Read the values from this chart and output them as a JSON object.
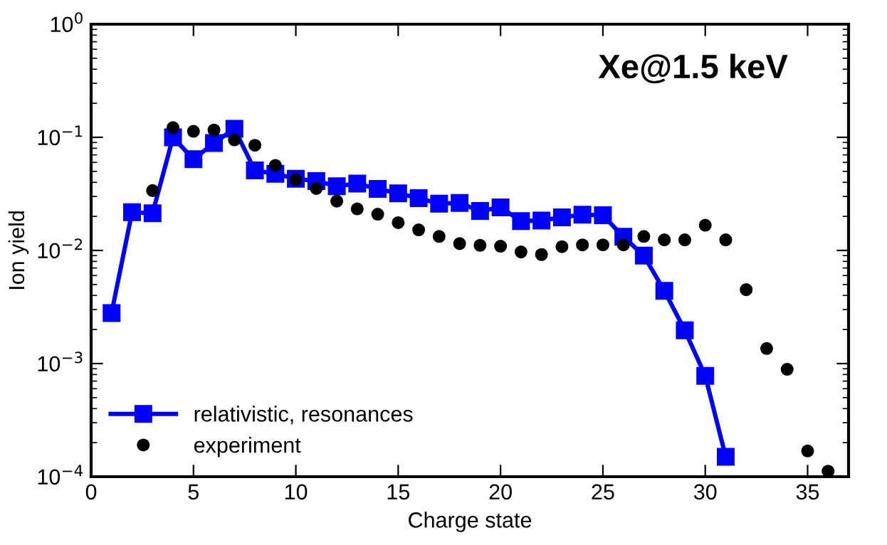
{
  "chart_data": {
    "type": "line",
    "xlabel": "Charge state",
    "ylabel": "Ion yield",
    "annotations": [
      "Xe@1.5 keV"
    ],
    "log": "y",
    "xlim": [
      0,
      37
    ],
    "xticks": [
      0,
      5,
      10,
      15,
      20,
      25,
      30,
      35
    ],
    "ylim": [
      0.0001,
      1
    ],
    "yticks": [
      {
        "value": 0.0001,
        "label": "10$^{−4}$"
      },
      {
        "value": 0.001,
        "label": "10$^{−3}$"
      },
      {
        "value": 0.01,
        "label": "10$^{−2}$"
      },
      {
        "value": 0.1,
        "label": "10$^{−1}$"
      },
      {
        "value": 1,
        "label": "10$^{0}$"
      }
    ],
    "grid": false,
    "legend": "bottom left",
    "series": [
      {
        "name": "relativistic, resonances",
        "color": "#0000ff",
        "marker": "square",
        "line_style": "solid",
        "x": [
          1,
          2,
          3,
          4,
          5,
          6,
          7,
          8,
          9,
          10,
          11,
          12,
          13,
          14,
          15,
          16,
          17,
          18,
          19,
          20,
          21,
          22,
          23,
          24,
          25,
          26,
          27,
          28,
          29,
          30,
          31
        ],
        "values": [
          0.0028,
          0.0218,
          0.0213,
          0.1,
          0.064,
          0.089,
          0.119,
          0.051,
          0.0476,
          0.043,
          0.041,
          0.037,
          0.039,
          0.035,
          0.032,
          0.029,
          0.0259,
          0.0263,
          0.0223,
          0.024,
          0.0182,
          0.0184,
          0.0196,
          0.0207,
          0.0205,
          0.0132,
          0.009,
          0.0044,
          0.00197,
          0.00078,
          0.00015
        ]
      },
      {
        "name": "experiment",
        "type": "scatter",
        "color": "#000000",
        "marker": "circle",
        "x": [
          3,
          4,
          5,
          6,
          7,
          8,
          9,
          10,
          11,
          12,
          13,
          14,
          15,
          16,
          17,
          18,
          19,
          20,
          21,
          22,
          23,
          24,
          25,
          26,
          27,
          28,
          29,
          30,
          31,
          32,
          33,
          34,
          35,
          36
        ],
        "values": [
          0.0338,
          0.122,
          0.113,
          0.116,
          0.095,
          0.085,
          0.0565,
          0.0423,
          0.0353,
          0.0273,
          0.0233,
          0.0209,
          0.0176,
          0.0152,
          0.0133,
          0.0115,
          0.0111,
          0.0109,
          0.0097,
          0.0092,
          0.0108,
          0.0112,
          0.0112,
          0.0112,
          0.0133,
          0.0124,
          0.0124,
          0.0167,
          0.0124,
          0.0045,
          0.00136,
          0.00089,
          0.000169,
          0.000112
        ]
      }
    ]
  }
}
